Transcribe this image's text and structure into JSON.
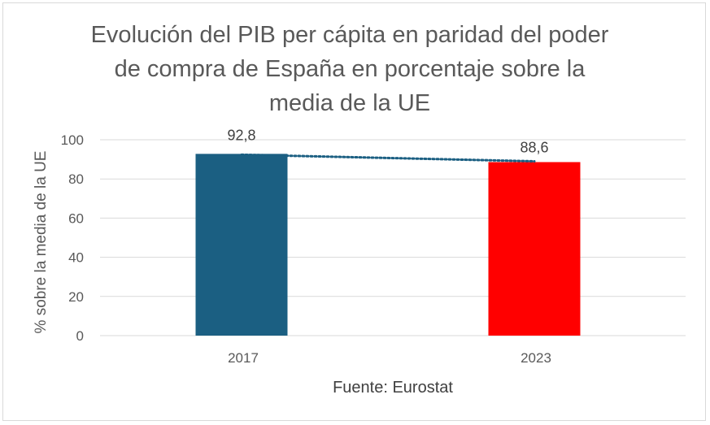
{
  "chart_data": {
    "type": "bar",
    "title_lines": [
      "Evolución del PIB per cápita en paridad del poder",
      "de compra de España en porcentaje sobre la",
      "media de la UE"
    ],
    "categories": [
      "2017",
      "2023"
    ],
    "values": [
      92.8,
      88.6
    ],
    "data_labels": [
      "92,8",
      "88,6"
    ],
    "bar_colors": [
      "#1b5f82",
      "#ff0000"
    ],
    "trendline": {
      "style": "dotted",
      "color": "#1b5f82"
    },
    "ylabel": "% sobre la media de la UE",
    "xlabel": "Fuente: Eurostat",
    "ylim": [
      0,
      100
    ],
    "yticks": [
      "0",
      "20",
      "40",
      "60",
      "80",
      "100"
    ],
    "grid": true,
    "gridline_color": "#d9d9d9"
  }
}
